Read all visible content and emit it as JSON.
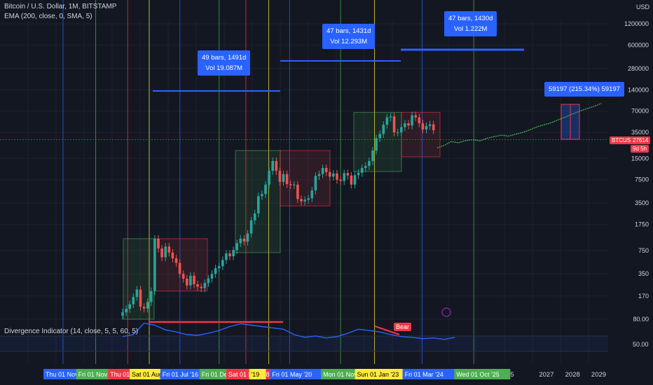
{
  "header": {
    "title": "Bitcoin / U.S. Dollar, 1M, BITSTAMP",
    "indicator": "EMA (200, close, 0, SMA, 5)",
    "oscillator": "Divergence Indicator (14, close, 5, 5, 60, 5)"
  },
  "price_axis": {
    "unit": "USD",
    "ticks": [
      "1200000",
      "600000",
      "280000",
      "140000",
      "70000",
      "35000",
      "15000",
      "7500",
      "3500",
      "1750",
      "750",
      "350",
      "170",
      "80.00"
    ],
    "symbol_tag": "BTCUSD",
    "last_price": "27614",
    "countdown": "9d 5h",
    "osc_tick": "50.00"
  },
  "time_axis": {
    "plain_ticks": [
      {
        "label": "2012",
        "x": 0.1
      },
      {
        "label": "2021",
        "x": 47.9
      },
      {
        "label": "2025",
        "x": 62.5
      },
      {
        "label": "2027",
        "x": 68.6
      },
      {
        "label": "2028",
        "x": 72.6
      },
      {
        "label": "2029",
        "x": 76.6
      }
    ],
    "event_tags": [
      {
        "label": "Thu 01 Nov '12",
        "x": 1.5,
        "color": "#2962ff"
      },
      {
        "label": "Fri 01 Nov '13",
        "x": 6.5,
        "color": "#4caf50"
      },
      {
        "label": "Thu 01",
        "x": 11.4,
        "color": "#f23645"
      },
      {
        "label": "Sat 01 Aug '1",
        "x": 14.7,
        "color": "#ffeb3b"
      },
      {
        "label": "Fri 01 Jul '16",
        "x": 19.4,
        "color": "#2962ff"
      },
      {
        "label": "Fri 01 Dec '17",
        "x": 25.4,
        "color": "#4caf50"
      },
      {
        "label": "Sat 01 Dec '18",
        "x": 29.5,
        "color": "#f23645"
      },
      {
        "label": "'19",
        "x": 33.0,
        "color": "#ffeb3b"
      },
      {
        "label": "Fri 01 May '20",
        "x": 36.2,
        "color": "#2962ff"
      },
      {
        "label": "Mon 01 Nov '21",
        "x": 44.0,
        "color": "#4caf50"
      },
      {
        "label": "Sun 01 Jan '23",
        "x": 49.2,
        "color": "#ffeb3b"
      },
      {
        "label": "Fri 01 Mar '24",
        "x": 56.5,
        "color": "#2962ff"
      },
      {
        "label": "Wed 01 Oct '25",
        "x": 64.4,
        "color": "#4caf50"
      }
    ]
  },
  "annotations": {
    "cycle1": {
      "bars": "49 bars, 1491d",
      "vol": "Vol 19.087M"
    },
    "cycle2": {
      "bars": "47 bars, 1431d",
      "vol": "Vol 12.293M"
    },
    "cycle3": {
      "bars": "47 bars, 1430d",
      "vol": "Vol 1.222M"
    },
    "projection": "59197 (215.34%) 59197",
    "bear_label": "Bear"
  },
  "chart_data": {
    "type": "line",
    "series": [
      {
        "name": "BTCUSD",
        "type": "candlestick",
        "x": [
          0,
          1,
          2,
          3,
          4,
          5,
          6,
          7,
          8,
          9,
          10,
          11,
          12,
          13,
          14,
          15,
          16,
          17,
          18,
          19,
          20,
          21,
          22,
          23,
          24,
          25,
          26,
          27,
          28,
          29,
          30,
          31,
          32,
          33,
          34,
          35,
          36,
          37,
          38,
          39,
          40,
          41,
          42,
          43,
          44,
          45,
          46,
          47,
          48,
          49,
          50,
          51,
          52,
          53,
          54,
          55,
          56,
          57,
          58,
          59,
          60,
          61,
          62,
          63,
          64,
          65,
          66,
          67,
          68,
          69,
          70,
          71,
          72,
          73,
          74,
          75,
          76,
          77,
          78,
          79,
          80,
          81,
          82,
          83,
          84,
          85,
          86,
          87
        ],
        "close": [
          100,
          112,
          130,
          165,
          210,
          120,
          113,
          140,
          200,
          1100,
          800,
          600,
          850,
          700,
          580,
          500,
          350,
          300,
          240,
          330,
          250,
          230,
          220,
          260,
          300,
          350,
          420,
          450,
          550,
          680,
          620,
          760,
          950,
          1100,
          1000,
          1300,
          2000,
          2500,
          4400,
          4700,
          6400,
          10000,
          13800,
          10000,
          7000,
          9000,
          6500,
          6300,
          6400,
          4000,
          3700,
          3900,
          4100,
          5300,
          8500,
          9000,
          11000,
          9600,
          8300,
          9200,
          7500,
          7200,
          9300,
          8600,
          6400,
          8700,
          9400,
          11000,
          11700,
          13800,
          19400,
          29000,
          33100,
          45000,
          57000,
          58900,
          35000,
          35000,
          41500,
          47000,
          43800,
          61300,
          57000,
          47000,
          38500,
          43200,
          45500,
          37700
        ],
        "high_factor": 1.12,
        "low_factor": 0.88
      },
      {
        "name": "Projection",
        "x": [
          88,
          90,
          92,
          94,
          96,
          98,
          100,
          102,
          104,
          106,
          108,
          110,
          112,
          114,
          116,
          118,
          120,
          122,
          124,
          126,
          128,
          130,
          132,
          134
        ],
        "values": [
          21000,
          23000,
          26000,
          25000,
          26800,
          27600,
          26500,
          29000,
          30500,
          32000,
          31000,
          33000,
          35000,
          38000,
          42000,
          45000,
          48000,
          53000,
          58000,
          64000,
          70000,
          76000,
          82000,
          90000
        ]
      },
      {
        "name": "Divergence Indicator",
        "x": [
          0,
          3,
          6,
          9,
          12,
          15,
          18,
          21,
          24,
          27,
          30,
          33,
          36,
          39,
          42,
          45,
          48,
          51,
          54,
          57,
          60,
          63,
          66,
          69,
          72,
          75,
          78,
          81,
          84,
          87,
          90,
          93
        ],
        "values": [
          55,
          58,
          75,
          72,
          65,
          62,
          58,
          57,
          60,
          64,
          70,
          74,
          72,
          70,
          68,
          66,
          58,
          54,
          56,
          53,
          55,
          60,
          66,
          64,
          62,
          58,
          55,
          54,
          52,
          53,
          51,
          54
        ]
      }
    ],
    "yscale": "log",
    "ylim": [
      60,
      1200000
    ],
    "xlim": [
      "2012",
      "2029"
    ],
    "grid": true
  }
}
